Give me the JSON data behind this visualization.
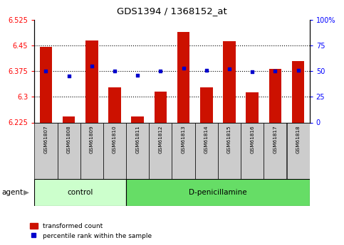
{
  "title": "GDS1394 / 1368152_at",
  "samples": [
    "GSM61807",
    "GSM61808",
    "GSM61809",
    "GSM61810",
    "GSM61811",
    "GSM61812",
    "GSM61813",
    "GSM61814",
    "GSM61815",
    "GSM61816",
    "GSM61817",
    "GSM61818"
  ],
  "transformed_count": [
    6.445,
    6.242,
    6.465,
    6.328,
    6.242,
    6.315,
    6.488,
    6.328,
    6.462,
    6.313,
    6.382,
    6.405
  ],
  "percentile_rank": [
    50,
    45,
    55,
    50,
    46,
    50,
    53,
    51,
    52,
    49,
    50,
    51
  ],
  "ylim_left": [
    6.225,
    6.525
  ],
  "ylim_right": [
    0,
    100
  ],
  "yticks_left": [
    6.225,
    6.3,
    6.375,
    6.45,
    6.525
  ],
  "yticks_right": [
    0,
    25,
    50,
    75,
    100
  ],
  "bar_color": "#cc1100",
  "dot_color": "#0000cc",
  "bar_bottom": 6.225,
  "control_samples": 4,
  "control_label": "control",
  "treatment_label": "D-penicillamine",
  "agent_label": "agent",
  "legend_bar_label": "transformed count",
  "legend_dot_label": "percentile rank within the sample",
  "control_bg": "#ccffcc",
  "treatment_bg": "#66dd66",
  "tick_label_bg": "#cccccc",
  "grid_color": "black",
  "figsize": [
    4.83,
    3.45
  ],
  "dpi": 100
}
